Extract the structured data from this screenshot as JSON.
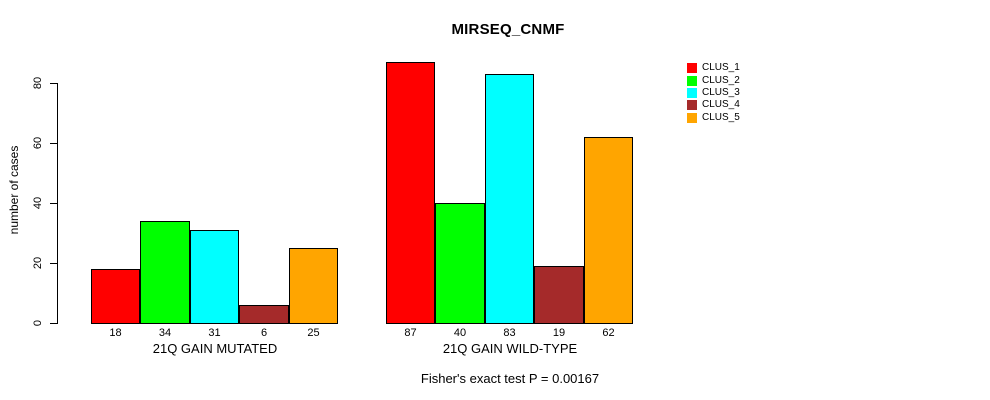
{
  "title": "MIRSEQ_CNMF",
  "chart_data": {
    "type": "bar",
    "title": "MIRSEQ_CNMF",
    "xlabel": "",
    "ylabel": "number of cases",
    "ylim": [
      0,
      87
    ],
    "yticks": [
      0,
      20,
      40,
      60,
      80
    ],
    "grid": false,
    "legend_position": "top-right",
    "categories": [
      "21Q GAIN MUTATED",
      "21Q GAIN WILD-TYPE"
    ],
    "series": [
      {
        "name": "CLUS_1",
        "color": "#FF0000",
        "values": [
          18,
          87
        ]
      },
      {
        "name": "CLUS_2",
        "color": "#00FF00",
        "values": [
          34,
          40
        ]
      },
      {
        "name": "CLUS_3",
        "color": "#00FFFF",
        "values": [
          31,
          83
        ]
      },
      {
        "name": "CLUS_4",
        "color": "#A52A2A",
        "values": [
          6,
          19
        ]
      },
      {
        "name": "CLUS_5",
        "color": "#FFA500",
        "values": [
          25,
          62
        ]
      }
    ],
    "bar_value_labels": [
      [
        "18",
        "34",
        "31",
        "6",
        "25"
      ],
      [
        "87",
        "40",
        "83",
        "19",
        "62"
      ]
    ],
    "footnote": "Fisher's exact test P = 0.00167"
  },
  "colors": {
    "axis": "#000000",
    "text": "#000000",
    "background": "#FFFFFF"
  }
}
